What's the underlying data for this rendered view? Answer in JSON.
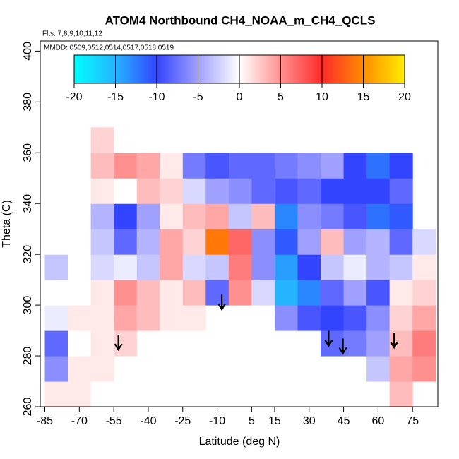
{
  "chart_data": {
    "type": "heatmap",
    "title": "ATOM4 Northbound CH4_NOAA_m_CH4_QCLS",
    "subtitle": "Flts: 7,8,9,10,11,12",
    "annotation": "MMDD: 0509,0512,0514,0517,0518,0519",
    "xlabel": "Latitude (deg N)",
    "ylabel": "Theta (C)",
    "xlim": [
      -87,
      86
    ],
    "ylim": [
      260,
      404
    ],
    "xticks": [
      -85,
      -70,
      -55,
      -40,
      -25,
      -10,
      5,
      15,
      30,
      45,
      60,
      75
    ],
    "yticks": [
      260,
      280,
      300,
      320,
      340,
      360,
      380,
      400
    ],
    "clim": [
      -20,
      20
    ],
    "cticks": [
      -20,
      -15,
      -10,
      -5,
      0,
      5,
      10,
      15,
      20
    ],
    "colors": [
      "#00ffff",
      "#25b4ff",
      "#3344ff",
      "#a0a0ff",
      "#ffffff",
      "#ff9090",
      "#ff2a2a",
      "#ff8c00",
      "#ffee00"
    ],
    "x_edges": [
      -85,
      -75,
      -65,
      -55,
      -45,
      -35,
      -25,
      -15,
      -5,
      5,
      15,
      25,
      35,
      45,
      55,
      65,
      75,
      85
    ],
    "y_edges": [
      260,
      270,
      280,
      290,
      300,
      310,
      320,
      330,
      340,
      350,
      360,
      370
    ],
    "values": [
      [
        1,
        1,
        0,
        null,
        null,
        null,
        null,
        null,
        null,
        null,
        null,
        null,
        null,
        null,
        null,
        3,
        null
      ],
      [
        -6,
        1,
        1,
        null,
        null,
        null,
        null,
        null,
        null,
        null,
        null,
        null,
        null,
        null,
        -3,
        4,
        5
      ],
      [
        -8,
        0,
        1,
        2,
        null,
        null,
        null,
        null,
        null,
        null,
        null,
        null,
        -8,
        -7,
        -5,
        3,
        6
      ],
      [
        -1,
        1,
        1,
        4,
        3,
        1,
        1,
        null,
        null,
        null,
        -6,
        -9,
        -10,
        -9,
        -6,
        2,
        4
      ],
      [
        0,
        0,
        1,
        5,
        3,
        1,
        3,
        -8,
        5,
        -2,
        -15,
        -13,
        -8,
        -5,
        -9,
        1,
        2
      ],
      [
        -3,
        0,
        -2,
        -1,
        -3,
        4,
        -2,
        -3,
        6,
        -6,
        -14,
        -10,
        -3,
        -1,
        -4,
        -3,
        1
      ],
      [
        0,
        0,
        -3,
        -8,
        -4,
        4,
        2,
        14,
        7,
        -6,
        -11,
        -5,
        3,
        -5,
        -4,
        -8,
        -2
      ],
      [
        null,
        0,
        -4,
        -10,
        -5,
        1,
        3,
        4,
        -3,
        3,
        -13,
        -6,
        -7,
        -9,
        -12,
        -11,
        null
      ],
      [
        null,
        null,
        1,
        0,
        3,
        2,
        -2,
        -5,
        -6,
        -8,
        -9,
        -8,
        -10,
        -10,
        -10,
        -8,
        null
      ],
      [
        null,
        null,
        3,
        5,
        4,
        1,
        -7,
        -9,
        -8,
        -8,
        -7,
        -6,
        -5,
        -10,
        -12,
        -10,
        null
      ],
      [
        null,
        null,
        2,
        0,
        null,
        null,
        null,
        null,
        null,
        null,
        null,
        null,
        null,
        null,
        null,
        null,
        null
      ]
    ],
    "arrows": {
      "x": [
        -53,
        -8,
        38.5,
        44.7,
        67
      ],
      "y": [
        282.5,
        298.3,
        284,
        281,
        283.3
      ]
    }
  }
}
